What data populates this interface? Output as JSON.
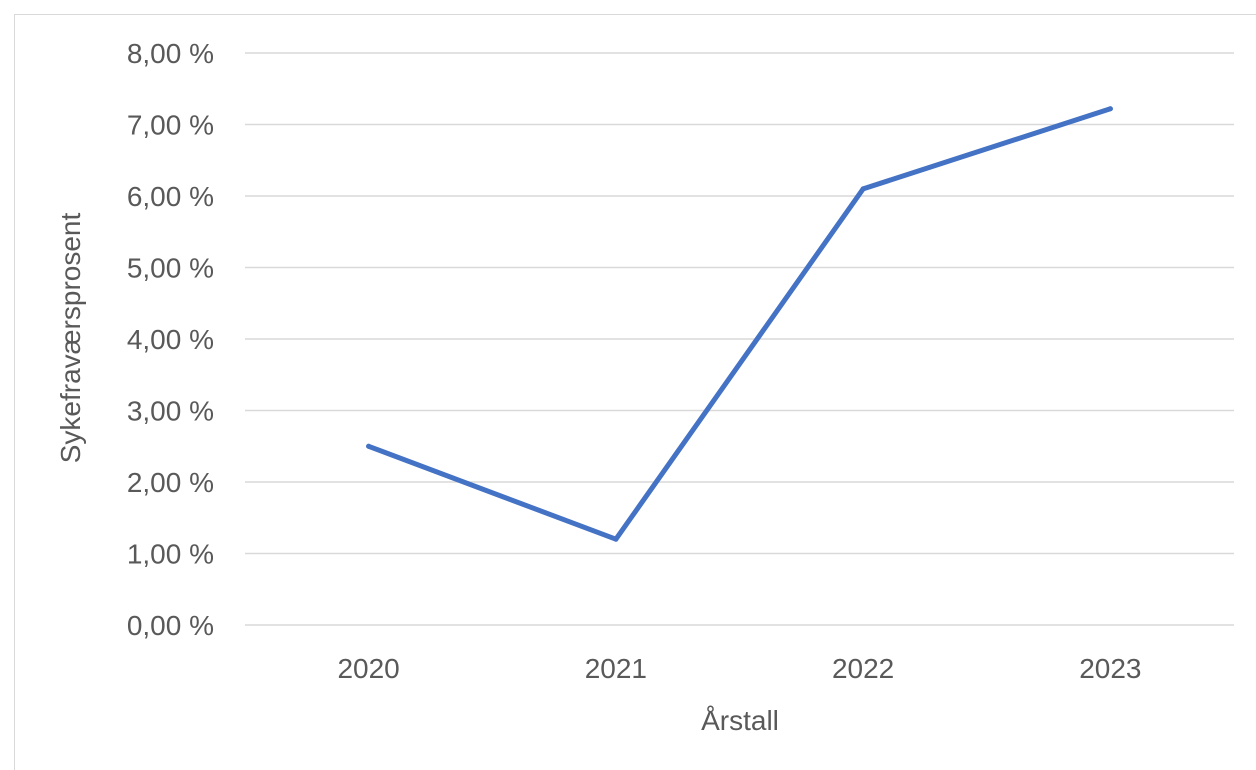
{
  "chart_data": {
    "type": "line",
    "title": "",
    "xlabel": "Årstall",
    "ylabel": "Sykefraværsprosent",
    "categories": [
      "2020",
      "2021",
      "2022",
      "2023"
    ],
    "series": [
      {
        "values": [
          2.5,
          1.2,
          6.1,
          7.22
        ]
      }
    ],
    "ylim": [
      0,
      8
    ],
    "ytick_values": [
      0,
      1,
      2,
      3,
      4,
      5,
      6,
      7,
      8
    ],
    "ytick_labels": [
      "0,00 %",
      "1,00 %",
      "2,00 %",
      "3,00 %",
      "4,00 %",
      "5,00 %",
      "6,00 %",
      "7,00 %",
      "8,00 %"
    ],
    "grid": true,
    "legend": "none",
    "colors": {
      "line": "#4472c4",
      "grid": "#d9d9d9",
      "text": "#595959"
    }
  }
}
